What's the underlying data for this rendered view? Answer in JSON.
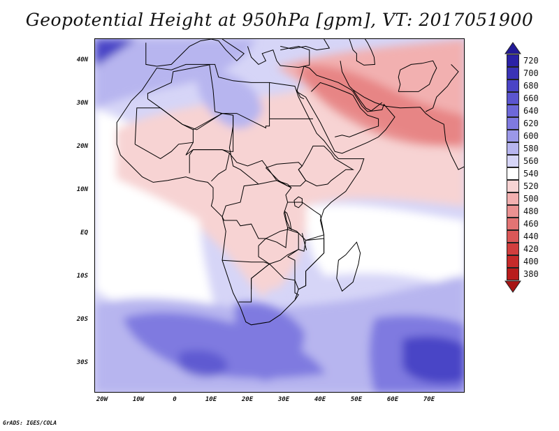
{
  "title": "Geopotential Height at 950hPa [gpm], VT: 2017051900",
  "credit": "GrADS: IGES/COLA",
  "lat_labels": [
    "40N",
    "30N",
    "20N",
    "10N",
    "EQ",
    "10S",
    "20S",
    "30S"
  ],
  "lon_labels": [
    "20W",
    "10W",
    "0",
    "10E",
    "20E",
    "30E",
    "40E",
    "50E",
    "60E",
    "70E"
  ],
  "colorbar": {
    "levels": [
      720,
      700,
      680,
      660,
      640,
      620,
      600,
      580,
      560,
      540,
      520,
      500,
      480,
      460,
      440,
      420,
      400,
      380
    ],
    "colors": [
      "#2b22a6",
      "#3a33b6",
      "#4a44c6",
      "#5b55cf",
      "#6d68d8",
      "#7f7ae0",
      "#9b98e8",
      "#b7b5ef",
      "#d6d5f7",
      "#ffffff",
      "#f7d3d3",
      "#f2b0b0",
      "#ea9191",
      "#e37474",
      "#da5757",
      "#d13e3e",
      "#c62a2a",
      "#b81c1c"
    ],
    "top_arrow_color": "#231a98",
    "bottom_arrow_color": "#a71414"
  },
  "map_colors": {
    "background": "#d6d5f7",
    "strong_low": "#4a44c6",
    "mid_low": "#7f7ae0",
    "light_low": "#b7b5ef",
    "neutral": "#ffffff",
    "light_high": "#f7d3d3",
    "mid_high": "#f2b0b0",
    "strong_high": "#e37474"
  }
}
